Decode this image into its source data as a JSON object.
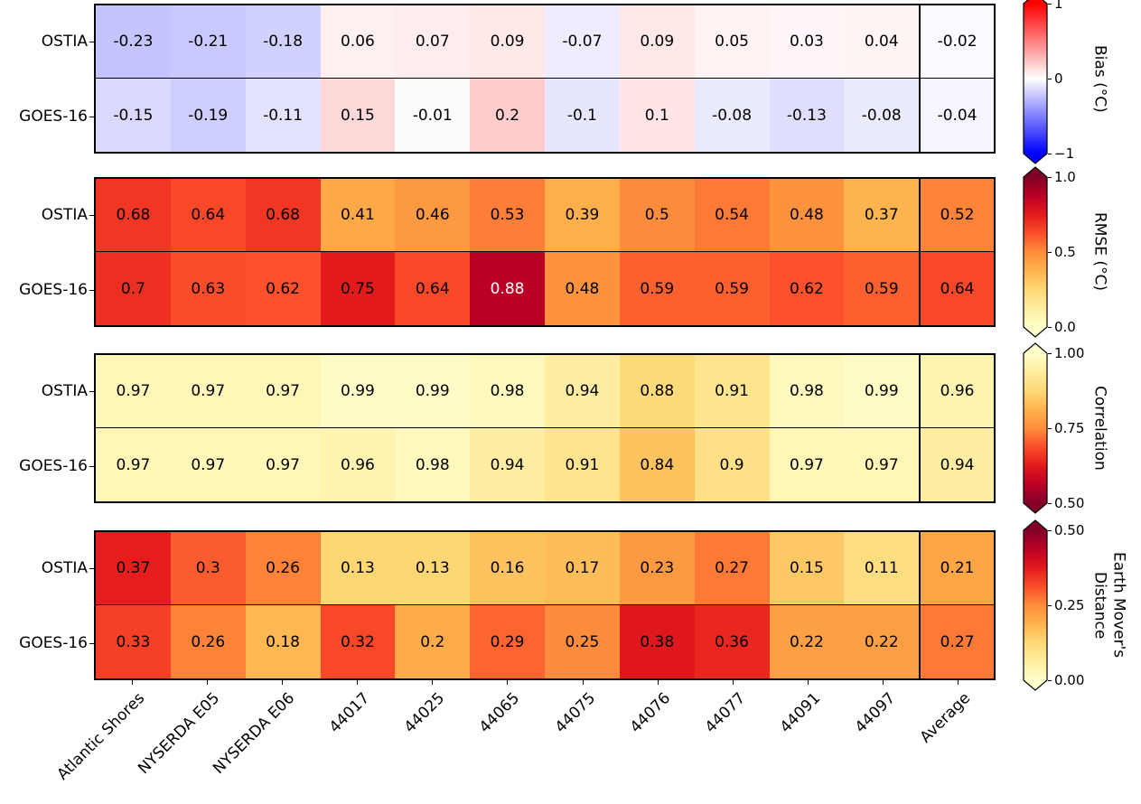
{
  "figure_title": "",
  "chart_data": [
    {
      "type": "heatmap",
      "title": "Bias (°C)",
      "colorbar_label_lines": [
        "Bias (°C)"
      ],
      "colormap": "bwr",
      "vmin": -1,
      "vmax": 1,
      "colorbar_ticks": [
        "1",
        "0",
        "−1"
      ],
      "rows": [
        "OSTIA",
        "GOES-16"
      ],
      "categories": [
        "Atlantic Shores",
        "NYSERDA E05",
        "NYSERDA E06",
        "44017",
        "44025",
        "44065",
        "44075",
        "44076",
        "44077",
        "44091",
        "44097",
        "Average"
      ],
      "series": [
        {
          "name": "OSTIA",
          "values": [
            -0.23,
            -0.21,
            -0.18,
            0.06,
            0.07,
            0.09,
            -0.07,
            0.09,
            0.05,
            0.03,
            0.04,
            -0.02
          ]
        },
        {
          "name": "GOES-16",
          "values": [
            -0.15,
            -0.19,
            -0.11,
            0.15,
            -0.01,
            0.2,
            -0.1,
            0.1,
            -0.08,
            -0.13,
            -0.08,
            -0.04
          ]
        }
      ]
    },
    {
      "type": "heatmap",
      "title": "RMSE (°C)",
      "colorbar_label_lines": [
        "RMSE (°C)"
      ],
      "colormap": "ylorrd",
      "vmin": 0,
      "vmax": 1,
      "colorbar_ticks": [
        "1.0",
        "0.5",
        "0.0"
      ],
      "rows": [
        "OSTIA",
        "GOES-16"
      ],
      "categories": [
        "Atlantic Shores",
        "NYSERDA E05",
        "NYSERDA E06",
        "44017",
        "44025",
        "44065",
        "44075",
        "44076",
        "44077",
        "44091",
        "44097",
        "Average"
      ],
      "series": [
        {
          "name": "OSTIA",
          "values": [
            0.68,
            0.64,
            0.68,
            0.41,
            0.46,
            0.53,
            0.39,
            0.5,
            0.54,
            0.48,
            0.37,
            0.52
          ]
        },
        {
          "name": "GOES-16",
          "values": [
            0.7,
            0.63,
            0.62,
            0.75,
            0.64,
            0.88,
            0.48,
            0.59,
            0.59,
            0.62,
            0.59,
            0.64
          ]
        }
      ]
    },
    {
      "type": "heatmap",
      "title": "Correlation",
      "colorbar_label_lines": [
        "Correlation"
      ],
      "colormap": "ylorrd_r",
      "vmin": 0.5,
      "vmax": 1,
      "colorbar_ticks": [
        "1.00",
        "0.75",
        "0.50"
      ],
      "rows": [
        "OSTIA",
        "GOES-16"
      ],
      "categories": [
        "Atlantic Shores",
        "NYSERDA E05",
        "NYSERDA E06",
        "44017",
        "44025",
        "44065",
        "44075",
        "44076",
        "44077",
        "44091",
        "44097",
        "Average"
      ],
      "series": [
        {
          "name": "OSTIA",
          "values": [
            0.97,
            0.97,
            0.97,
            0.99,
            0.99,
            0.98,
            0.94,
            0.88,
            0.91,
            0.98,
            0.99,
            0.96
          ]
        },
        {
          "name": "GOES-16",
          "values": [
            0.97,
            0.97,
            0.97,
            0.96,
            0.98,
            0.94,
            0.91,
            0.84,
            0.9,
            0.97,
            0.97,
            0.94
          ]
        }
      ]
    },
    {
      "type": "heatmap",
      "title": "Earth Mover's Distance",
      "colorbar_label_lines": [
        "Earth Mover's",
        "Distance"
      ],
      "colormap": "ylorrd",
      "vmin": 0,
      "vmax": 0.5,
      "colorbar_ticks": [
        "0.50",
        "0.25",
        "0.00"
      ],
      "rows": [
        "OSTIA",
        "GOES-16"
      ],
      "categories": [
        "Atlantic Shores",
        "NYSERDA E05",
        "NYSERDA E06",
        "44017",
        "44025",
        "44065",
        "44075",
        "44076",
        "44077",
        "44091",
        "44097",
        "Average"
      ],
      "series": [
        {
          "name": "OSTIA",
          "values": [
            0.37,
            0.3,
            0.26,
            0.13,
            0.13,
            0.16,
            0.17,
            0.23,
            0.27,
            0.15,
            0.11,
            0.21
          ]
        },
        {
          "name": "GOES-16",
          "values": [
            0.33,
            0.26,
            0.18,
            0.32,
            0.2,
            0.29,
            0.25,
            0.38,
            0.36,
            0.22,
            0.22,
            0.27
          ]
        }
      ]
    }
  ]
}
